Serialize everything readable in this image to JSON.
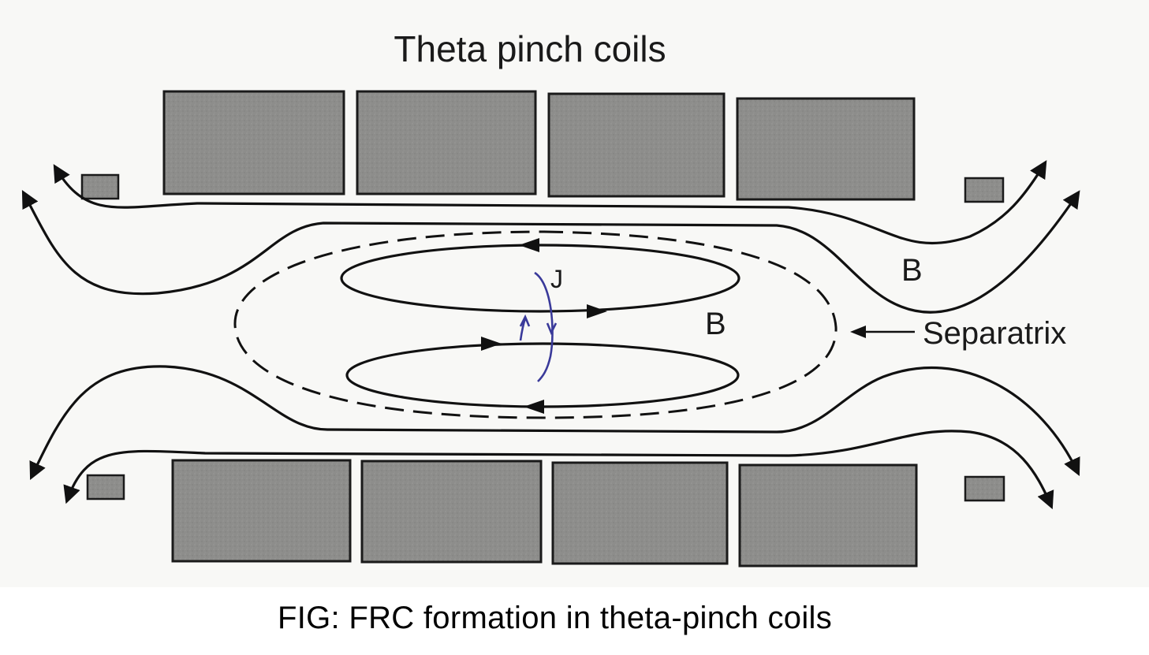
{
  "diagram": {
    "title": "Theta pinch coils",
    "labels": {
      "current": "J",
      "field_outer": "B",
      "field_inner": "B",
      "separatrix": "Separatrix"
    },
    "caption": "FIG: FRC formation in theta-pinch coils",
    "colors": {
      "coil_fill": "#8c8c8c",
      "coil_stroke": "#1a1a1a",
      "line": "#111111",
      "current_loop": "#3a3a9a",
      "background": "#f7f7f5"
    }
  }
}
